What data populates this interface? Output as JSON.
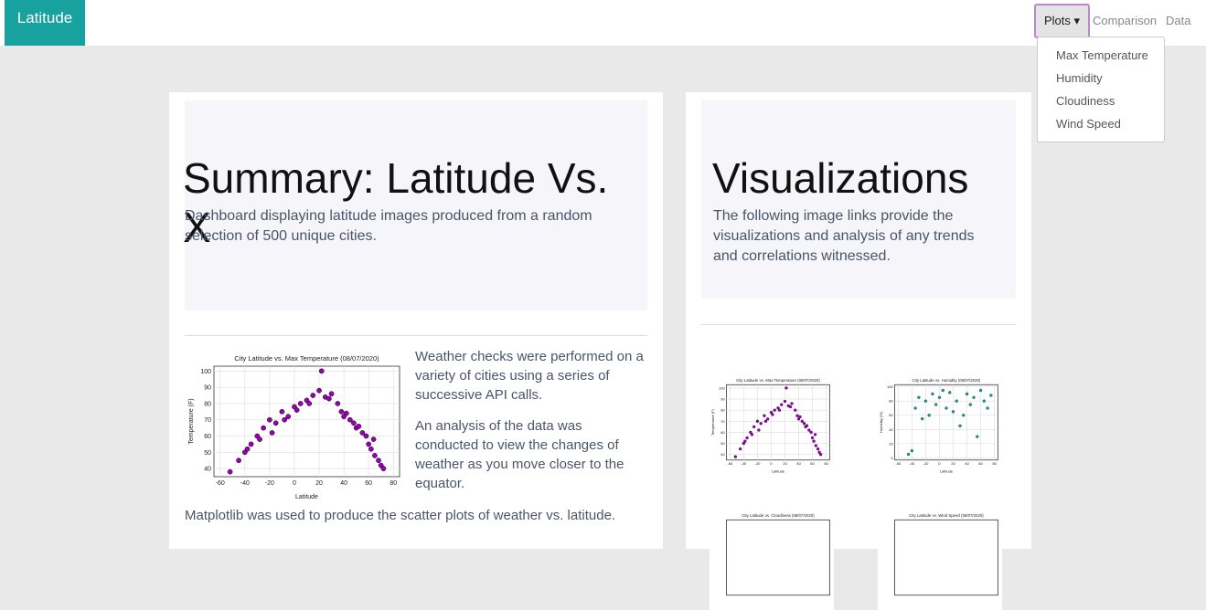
{
  "navbar": {
    "brand": "Latitude",
    "dropdown": "Plots",
    "links": [
      "Comparison",
      "Data"
    ],
    "menu": [
      "Max Temperature",
      "Humidity",
      "Cloudiness",
      "Wind Speed"
    ]
  },
  "summary": {
    "heading": "Summary: Latitude Vs. X",
    "lead": "Dashboard displaying latitude images produced from a random selection of 500 unique cities.",
    "paragraphs": [
      "Weather checks were performed on a variety of cities using a series of successive API calls.",
      "An analysis of the data was conducted to view the changes of weather as you move closer to the equator."
    ],
    "footer_text": "Matplotlib was used to produce the scatter plots of weather vs. latitude."
  },
  "visualizations": {
    "heading": "Visualizations",
    "lead": "The following image links provide the visualizations and analysis of any trends and correlations witnessed."
  },
  "chart_data": [
    {
      "type": "scatter",
      "title": "City Latitude vs. Max Temperature (08/07/2020)",
      "x_label": "Latitude",
      "y_label": "Temperature (F)",
      "color": "#9b00b5",
      "x": [
        -52,
        -45,
        -40,
        -35,
        -30,
        -25,
        -20,
        -15,
        -10,
        -5,
        0,
        5,
        10,
        15,
        20,
        22,
        25,
        30,
        35,
        38,
        40,
        45,
        48,
        50,
        55,
        58,
        60,
        62,
        65,
        68,
        70,
        -38,
        -28,
        -18,
        -8,
        2,
        12,
        28,
        42,
        52,
        64,
        72
      ],
      "values": [
        38,
        45,
        50,
        55,
        60,
        65,
        70,
        68,
        75,
        72,
        78,
        80,
        82,
        85,
        88,
        100,
        84,
        86,
        80,
        75,
        72,
        70,
        68,
        65,
        62,
        60,
        55,
        52,
        48,
        45,
        42,
        52,
        58,
        62,
        70,
        76,
        80,
        83,
        74,
        66,
        58,
        40
      ],
      "xlim": [
        -65,
        85
      ],
      "ylim": [
        35,
        103
      ],
      "xticks": [
        -60,
        -40,
        -20,
        0,
        20,
        40,
        60,
        80
      ],
      "yticks": [
        40,
        50,
        60,
        70,
        80,
        90,
        100
      ]
    },
    {
      "type": "scatter",
      "title": "City Latitude vs. Humidity (08/07/2020)",
      "x_label": "Latitude",
      "y_label": "Humidity (%)",
      "color": "#1aa59b",
      "x": [
        -45,
        -40,
        -35,
        -30,
        -20,
        -15,
        -10,
        -5,
        0,
        5,
        10,
        20,
        25,
        30,
        40,
        45,
        50,
        55,
        60,
        65,
        70,
        75,
        -25,
        15,
        35
      ],
      "values": [
        5,
        10,
        70,
        85,
        80,
        60,
        90,
        75,
        85,
        95,
        70,
        65,
        80,
        45,
        90,
        75,
        85,
        30,
        95,
        80,
        70,
        88,
        55,
        92,
        60
      ],
      "xlim": [
        -65,
        85
      ],
      "ylim": [
        -3,
        103
      ],
      "xticks": [
        -60,
        -40,
        -20,
        0,
        20,
        40,
        60,
        80
      ],
      "yticks": [
        0,
        20,
        40,
        60,
        80,
        100
      ]
    },
    {
      "type": "scatter",
      "title": "City Latitude vs. Cloudiness (08/07/2020)"
    },
    {
      "type": "scatter",
      "title": "City Latitude vs. Wind Speed (08/07/2020)"
    }
  ]
}
